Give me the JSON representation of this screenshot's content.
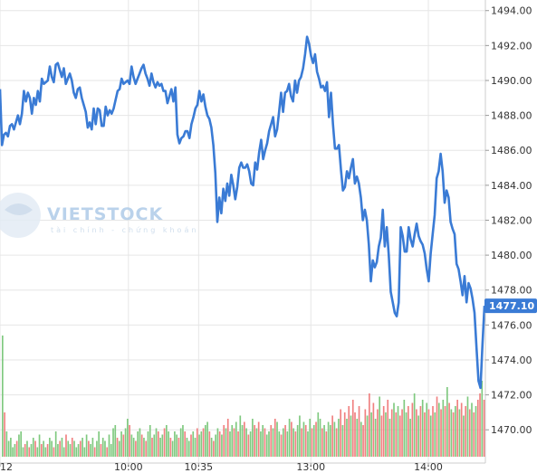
{
  "watermark": {
    "brand": "VIETSTOCK",
    "tagline": "tài chính - chứng khoán"
  },
  "chart_data": {
    "type": "line",
    "title": "",
    "xlabel": "",
    "ylabel": "",
    "y_ticks": [
      "1494.00",
      "1492.00",
      "1490.00",
      "1488.00",
      "1486.00",
      "1484.00",
      "1482.00",
      "1480.00",
      "1478.00",
      "1476.00",
      "1474.00",
      "1472.00",
      "1470.00"
    ],
    "ylim": [
      1468.2,
      1494.4
    ],
    "x_ticks": [
      {
        "label": "12",
        "t": 0
      },
      {
        "label": "10:00",
        "t": 0.2646
      },
      {
        "label": "10:35",
        "t": 0.4092
      },
      {
        "label": "13:00",
        "t": 0.6404
      },
      {
        "label": "14:00",
        "t": 0.8825
      }
    ],
    "last_value_label": "1477.10",
    "series": [
      {
        "values": [
          1489.5,
          1486.3,
          1486.9,
          1487.0,
          1486.8,
          1487.4,
          1487.5,
          1487.2,
          1487.6,
          1488.0,
          1487.5,
          1488.1,
          1489.4,
          1488.8,
          1489.3,
          1489.0,
          1488.1,
          1489.0,
          1488.6,
          1489.4,
          1488.8,
          1490.1,
          1489.8,
          1489.9,
          1490.0,
          1490.8,
          1490.2,
          1489.9,
          1490.9,
          1491.0,
          1490.6,
          1490.2,
          1490.7,
          1489.8,
          1490.1,
          1490.4,
          1490.0,
          1489.3,
          1489.0,
          1489.5,
          1489.6,
          1489.0,
          1488.6,
          1488.2,
          1487.3,
          1487.6,
          1487.2,
          1488.4,
          1487.5,
          1488.4,
          1488.3,
          1487.4,
          1487.4,
          1488.5,
          1488.0,
          1488.3,
          1488.1,
          1488.4,
          1488.9,
          1489.4,
          1489.5,
          1490.1,
          1489.8,
          1489.9,
          1490.0,
          1489.8,
          1490.8,
          1490.2,
          1489.8,
          1490.1,
          1490.4,
          1490.7,
          1490.9,
          1490.4,
          1490.1,
          1489.7,
          1490.4,
          1489.9,
          1489.6,
          1489.9,
          1489.7,
          1489.8,
          1489.4,
          1489.4,
          1488.7,
          1489.1,
          1489.5,
          1488.8,
          1489.6,
          1486.9,
          1486.4,
          1486.7,
          1486.8,
          1487.1,
          1487.1,
          1486.7,
          1487.5,
          1487.9,
          1488.4,
          1488.6,
          1489.4,
          1488.8,
          1489.2,
          1488.5,
          1488.0,
          1487.8,
          1487.3,
          1486.3,
          1484.7,
          1481.9,
          1483.3,
          1482.4,
          1483.8,
          1483.1,
          1484.1,
          1483.4,
          1484.6,
          1484.0,
          1483.2,
          1483.9,
          1485.0,
          1485.3,
          1485.0,
          1485.0,
          1485.2,
          1484.8,
          1484.1,
          1484.0,
          1485.3,
          1484.9,
          1485.9,
          1486.6,
          1485.5,
          1486.0,
          1486.4,
          1487.1,
          1487.5,
          1487.9,
          1486.8,
          1487.2,
          1488.2,
          1489.3,
          1488.2,
          1489.3,
          1489.4,
          1489.8,
          1489.1,
          1488.8,
          1490.0,
          1489.3,
          1490.0,
          1490.2,
          1490.7,
          1491.5,
          1492.5,
          1492.1,
          1491.4,
          1491.0,
          1491.5,
          1490.5,
          1490.1,
          1489.6,
          1489.7,
          1489.4,
          1489.9,
          1487.9,
          1489.3,
          1487.5,
          1486.1,
          1486.1,
          1486.3,
          1484.9,
          1483.7,
          1483.9,
          1484.8,
          1484.4,
          1485.0,
          1485.5,
          1484.1,
          1484.5,
          1484.1,
          1483.3,
          1482.0,
          1482.6,
          1482.0,
          1480.6,
          1478.5,
          1479.7,
          1479.3,
          1479.6,
          1480.5,
          1481.0,
          1482.6,
          1480.5,
          1481.6,
          1480.0,
          1477.9,
          1477.3,
          1476.7,
          1476.5,
          1477.3,
          1481.6,
          1481.1,
          1480.2,
          1480.2,
          1481.6,
          1480.9,
          1480.5,
          1481.2,
          1481.8,
          1481.1,
          1480.8,
          1480.6,
          1480.1,
          1479.2,
          1478.5,
          1480.1,
          1481.2,
          1482.3,
          1484.4,
          1484.8,
          1485.8,
          1484.8,
          1483.0,
          1483.7,
          1483.3,
          1481.9,
          1481.5,
          1481.2,
          1479.5,
          1479.2,
          1478.5,
          1477.7,
          1478.8,
          1477.3,
          1478.4,
          1478.1,
          1477.5,
          1476.7,
          1474.7,
          1472.8,
          1472.4,
          1474.9,
          1477.1
        ]
      }
    ],
    "volume": [
      [
        5,
        1
      ],
      [
        6,
        1
      ],
      [
        3,
        1
      ],
      [
        4,
        1
      ],
      [
        5,
        0
      ],
      [
        7,
        1
      ],
      [
        8,
        1
      ],
      [
        3,
        1
      ],
      [
        4,
        0
      ],
      [
        5,
        1
      ],
      [
        3,
        0
      ],
      [
        4,
        1
      ],
      [
        6,
        1
      ],
      [
        5,
        0
      ],
      [
        3,
        1
      ],
      [
        7,
        1
      ],
      [
        4,
        0
      ],
      [
        5,
        1
      ],
      [
        3,
        1
      ],
      [
        4,
        0
      ],
      [
        6,
        1
      ],
      [
        5,
        1
      ],
      [
        3,
        0
      ],
      [
        8,
        1
      ],
      [
        4,
        1
      ],
      [
        5,
        0
      ],
      [
        6,
        1
      ],
      [
        3,
        1
      ],
      [
        7,
        0
      ],
      [
        5,
        1
      ],
      [
        4,
        1
      ],
      [
        6,
        0
      ],
      [
        5,
        1
      ],
      [
        3,
        1
      ],
      [
        4,
        1
      ],
      [
        5,
        0
      ],
      [
        6,
        1
      ],
      [
        3,
        1
      ],
      [
        7,
        1
      ],
      [
        5,
        0
      ],
      [
        4,
        1
      ],
      [
        6,
        1
      ],
      [
        3,
        0
      ],
      [
        5,
        1
      ],
      [
        8,
        1
      ],
      [
        4,
        0
      ],
      [
        6,
        1
      ],
      [
        5,
        1
      ],
      [
        3,
        0
      ],
      [
        7,
        1
      ],
      [
        4,
        1
      ],
      [
        9,
        1
      ],
      [
        10,
        1
      ],
      [
        6,
        0
      ],
      [
        5,
        1
      ],
      [
        8,
        1
      ],
      [
        7,
        0
      ],
      [
        9,
        1
      ],
      [
        12,
        1
      ],
      [
        10,
        0
      ],
      [
        7,
        1
      ],
      [
        6,
        1
      ],
      [
        5,
        0
      ],
      [
        8,
        1
      ],
      [
        9,
        1
      ],
      [
        7,
        0
      ],
      [
        6,
        1
      ],
      [
        5,
        0
      ],
      [
        8,
        1
      ],
      [
        10,
        1
      ],
      [
        6,
        0
      ],
      [
        7,
        1
      ],
      [
        9,
        1
      ],
      [
        8,
        0
      ],
      [
        6,
        1
      ],
      [
        7,
        1
      ],
      [
        9,
        0
      ],
      [
        10,
        1
      ],
      [
        8,
        1
      ],
      [
        6,
        0
      ],
      [
        5,
        1
      ],
      [
        8,
        1
      ],
      [
        7,
        1
      ],
      [
        6,
        0
      ],
      [
        9,
        1
      ],
      [
        10,
        1
      ],
      [
        8,
        0
      ],
      [
        6,
        1
      ],
      [
        5,
        1
      ],
      [
        7,
        0
      ],
      [
        8,
        1
      ],
      [
        6,
        1
      ],
      [
        9,
        0
      ],
      [
        7,
        1
      ],
      [
        8,
        1
      ],
      [
        9,
        0
      ],
      [
        10,
        1
      ],
      [
        11,
        1
      ],
      [
        8,
        0
      ],
      [
        6,
        1
      ],
      [
        5,
        0
      ],
      [
        7,
        1
      ],
      [
        9,
        1
      ],
      [
        8,
        0
      ],
      [
        7,
        1
      ],
      [
        10,
        0
      ],
      [
        9,
        1
      ],
      [
        12,
        0
      ],
      [
        8,
        1
      ],
      [
        10,
        1
      ],
      [
        9,
        0
      ],
      [
        11,
        1
      ],
      [
        8,
        0
      ],
      [
        13,
        1
      ],
      [
        10,
        1
      ],
      [
        11,
        0
      ],
      [
        9,
        1
      ],
      [
        7,
        0
      ],
      [
        8,
        1
      ],
      [
        12,
        1
      ],
      [
        10,
        0
      ],
      [
        9,
        1
      ],
      [
        11,
        0
      ],
      [
        8,
        1
      ],
      [
        10,
        1
      ],
      [
        9,
        0
      ],
      [
        7,
        1
      ],
      [
        8,
        1
      ],
      [
        10,
        0
      ],
      [
        9,
        1
      ],
      [
        12,
        0
      ],
      [
        11,
        1
      ],
      [
        8,
        1
      ],
      [
        7,
        0
      ],
      [
        9,
        1
      ],
      [
        10,
        0
      ],
      [
        8,
        1
      ],
      [
        12,
        1
      ],
      [
        11,
        0
      ],
      [
        9,
        1
      ],
      [
        8,
        0
      ],
      [
        10,
        1
      ],
      [
        13,
        1
      ],
      [
        9,
        0
      ],
      [
        11,
        1
      ],
      [
        10,
        0
      ],
      [
        8,
        1
      ],
      [
        12,
        1
      ],
      [
        9,
        0
      ],
      [
        10,
        1
      ],
      [
        11,
        0
      ],
      [
        14,
        1
      ],
      [
        12,
        1
      ],
      [
        9,
        0
      ],
      [
        10,
        1
      ],
      [
        8,
        0
      ],
      [
        11,
        1
      ],
      [
        10,
        1
      ],
      [
        13,
        0
      ],
      [
        11,
        1
      ],
      [
        9,
        0
      ],
      [
        12,
        1
      ],
      [
        15,
        0
      ],
      [
        10,
        1
      ],
      [
        14,
        0
      ],
      [
        12,
        1
      ],
      [
        16,
        0
      ],
      [
        13,
        1
      ],
      [
        18,
        0
      ],
      [
        14,
        0
      ],
      [
        12,
        1
      ],
      [
        16,
        0
      ],
      [
        11,
        1
      ],
      [
        10,
        0
      ],
      [
        15,
        0
      ],
      [
        13,
        1
      ],
      [
        20,
        0
      ],
      [
        14,
        1
      ],
      [
        17,
        0
      ],
      [
        12,
        1
      ],
      [
        15,
        0
      ],
      [
        19,
        1
      ],
      [
        13,
        0
      ],
      [
        16,
        0
      ],
      [
        14,
        1
      ],
      [
        18,
        0
      ],
      [
        12,
        1
      ],
      [
        15,
        0
      ],
      [
        17,
        1
      ],
      [
        14,
        0
      ],
      [
        16,
        1
      ],
      [
        13,
        0
      ],
      [
        15,
        0
      ],
      [
        18,
        1
      ],
      [
        14,
        1
      ],
      [
        16,
        0
      ],
      [
        12,
        1
      ],
      [
        17,
        0
      ],
      [
        20,
        1
      ],
      [
        15,
        0
      ],
      [
        13,
        1
      ],
      [
        16,
        0
      ],
      [
        18,
        1
      ],
      [
        14,
        0
      ],
      [
        17,
        1
      ],
      [
        15,
        0
      ],
      [
        13,
        1
      ],
      [
        16,
        0
      ],
      [
        14,
        1
      ],
      [
        19,
        0
      ],
      [
        17,
        1
      ],
      [
        15,
        0
      ],
      [
        18,
        1
      ],
      [
        16,
        0
      ],
      [
        22,
        1
      ],
      [
        17,
        0
      ],
      [
        15,
        1
      ],
      [
        14,
        0
      ],
      [
        16,
        1
      ],
      [
        18,
        0
      ],
      [
        15,
        1
      ],
      [
        17,
        0
      ],
      [
        13,
        1
      ],
      [
        16,
        0
      ],
      [
        19,
        1
      ],
      [
        15,
        0
      ],
      [
        17,
        1
      ],
      [
        14,
        0
      ],
      [
        16,
        1
      ],
      [
        18,
        0
      ],
      [
        20,
        0
      ],
      [
        24,
        1
      ],
      [
        22,
        0
      ]
    ],
    "volume_first_bars": [
      [
        38,
        1
      ],
      [
        14,
        0
      ],
      [
        8,
        1
      ]
    ],
    "colors": {
      "line": "#3a7bd5",
      "vol_up": "#7fc97f",
      "vol_down": "#f08080",
      "label_bg": "#3a7bd5",
      "grid": "#e6e6e6"
    }
  }
}
